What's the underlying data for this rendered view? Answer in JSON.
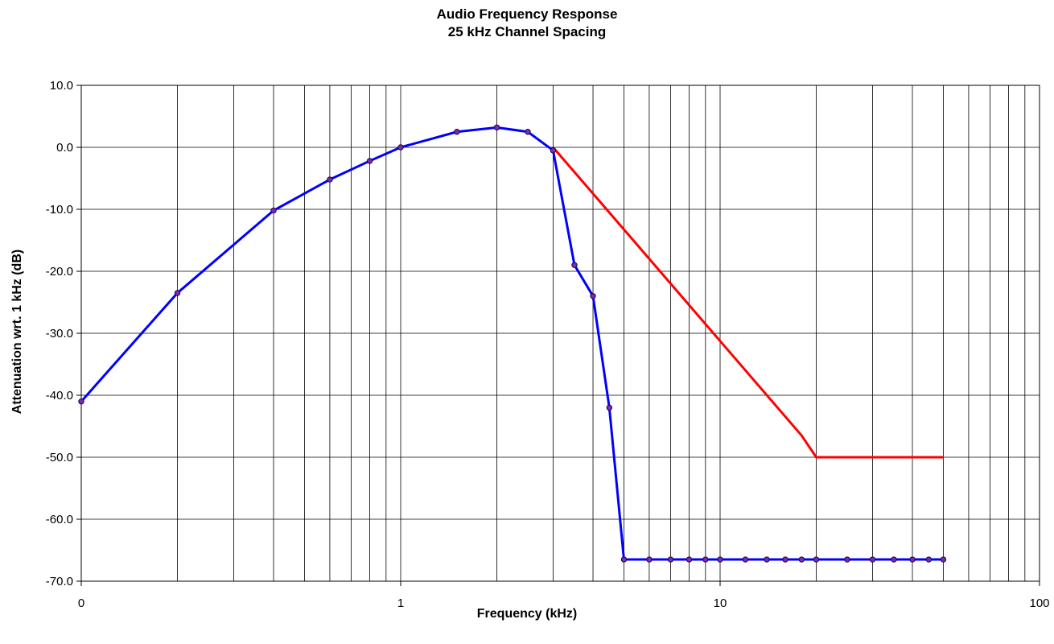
{
  "chart_data": {
    "type": "line",
    "title": "Audio Frequency Response",
    "subtitle": "25 kHz Channel Spacing",
    "xlabel": "Frequency (kHz)",
    "ylabel": "Attenuation wrt. 1 kHz (dB)",
    "x_scale": "log",
    "xlim": [
      0.1,
      100
    ],
    "ylim": [
      -70,
      10
    ],
    "x_tick_values": [
      0.1,
      1,
      10,
      100
    ],
    "x_tick_labels": [
      "0",
      "1",
      "10",
      "100"
    ],
    "y_tick_values": [
      10,
      0,
      -10,
      -20,
      -30,
      -40,
      -50,
      -60,
      -70
    ],
    "y_tick_labels": [
      "10.0",
      "0.0",
      "-10.0",
      "-20.0",
      "-30.0",
      "-40.0",
      "-50.0",
      "-60.0",
      "-70.0"
    ],
    "grid": true,
    "legend": "none",
    "series": [
      {
        "color": "#0000ff",
        "markers": true,
        "x": [
          0.1,
          0.2,
          0.4,
          0.6,
          0.8,
          1,
          1.5,
          2,
          2.5,
          3,
          3.5,
          4,
          4.5,
          5,
          6,
          7,
          8,
          9,
          10,
          12,
          14,
          16,
          18,
          20,
          25,
          30,
          35,
          40,
          45,
          50
        ],
        "y": [
          -41,
          -23.5,
          -10.2,
          -5.2,
          -2.2,
          0,
          2.5,
          3.2,
          2.5,
          -0.5,
          -19,
          -24,
          -42,
          -66.5,
          -66.5,
          -66.5,
          -66.5,
          -66.5,
          -66.5,
          -66.5,
          -66.5,
          -66.5,
          -66.5,
          -66.5,
          -66.5,
          -66.5,
          -66.5,
          -66.5,
          -66.5,
          -66.5
        ]
      },
      {
        "color": "#ff0000",
        "markers": false,
        "x": [
          3,
          18,
          20,
          50
        ],
        "y": [
          0,
          -46.5,
          -50,
          -50
        ]
      }
    ]
  }
}
